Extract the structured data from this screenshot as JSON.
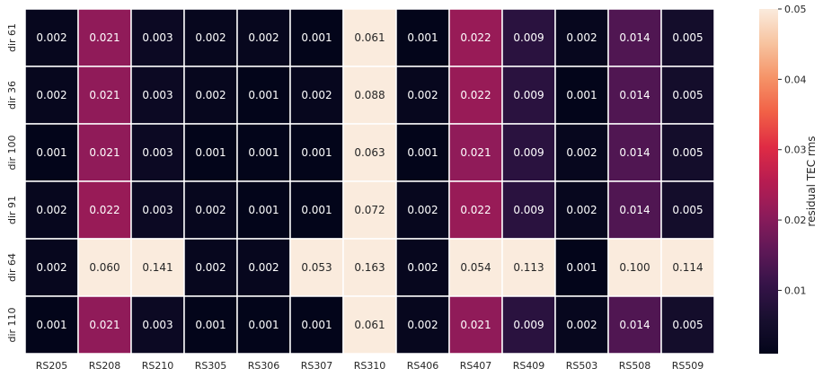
{
  "chart_data": {
    "type": "heatmap",
    "x_labels": [
      "RS205",
      "RS208",
      "RS210",
      "RS305",
      "RS306",
      "RS307",
      "RS310",
      "RS406",
      "RS407",
      "RS409",
      "RS503",
      "RS508",
      "RS509"
    ],
    "y_labels": [
      "dir 61",
      "dir 36",
      "dir 100",
      "dir 91",
      "dir 64",
      "dir 110"
    ],
    "values": [
      [
        "0.002",
        "0.021",
        "0.003",
        "0.002",
        "0.002",
        "0.001",
        "0.061",
        "0.001",
        "0.022",
        "0.009",
        "0.002",
        "0.014",
        "0.005"
      ],
      [
        "0.002",
        "0.021",
        "0.003",
        "0.002",
        "0.001",
        "0.002",
        "0.088",
        "0.002",
        "0.022",
        "0.009",
        "0.001",
        "0.014",
        "0.005"
      ],
      [
        "0.001",
        "0.021",
        "0.003",
        "0.001",
        "0.001",
        "0.001",
        "0.063",
        "0.001",
        "0.021",
        "0.009",
        "0.002",
        "0.014",
        "0.005"
      ],
      [
        "0.002",
        "0.022",
        "0.003",
        "0.002",
        "0.001",
        "0.001",
        "0.072",
        "0.002",
        "0.022",
        "0.009",
        "0.002",
        "0.014",
        "0.005"
      ],
      [
        "0.002",
        "0.060",
        "0.141",
        "0.002",
        "0.002",
        "0.053",
        "0.163",
        "0.002",
        "0.054",
        "0.113",
        "0.001",
        "0.100",
        "0.114"
      ],
      [
        "0.001",
        "0.021",
        "0.003",
        "0.001",
        "0.001",
        "0.001",
        "0.061",
        "0.002",
        "0.021",
        "0.009",
        "0.002",
        "0.014",
        "0.005"
      ]
    ],
    "colorbar": {
      "label": "residual TEC rms",
      "vmin": 0.001,
      "vmax": 0.05,
      "ticks": [
        "0.01",
        "0.02",
        "0.03",
        "0.04",
        "0.05"
      ],
      "colormap": "rocket"
    }
  }
}
